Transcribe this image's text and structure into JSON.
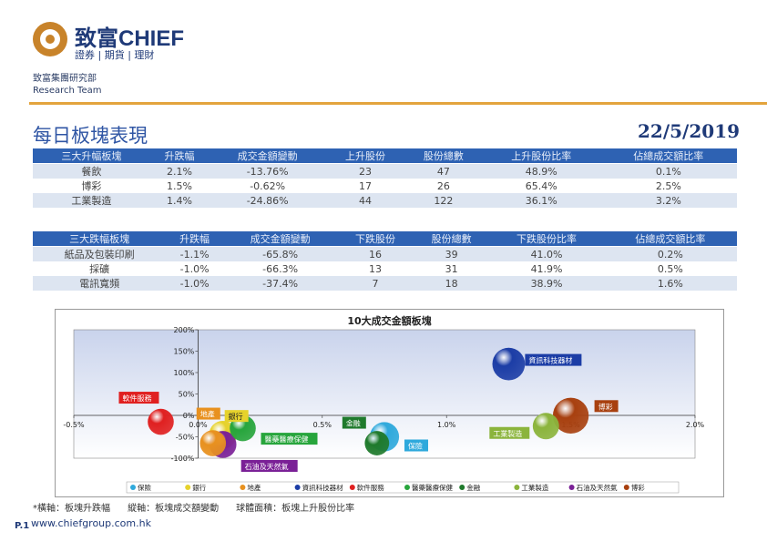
{
  "brand": {
    "name": "致富CHIEF",
    "tagline": "證券 | 期貨 | 理財",
    "dept_cn": "致富集團研究部",
    "dept_en": "Research Team"
  },
  "page": {
    "title": "每日板塊表現",
    "date": "22/5/2019",
    "footnote": "*橫軸：板塊升跌幅      縱軸：板塊成交額變動      球體面積：板塊上升股份比率",
    "page_no": "P.1",
    "url": "www.chiefgroup.com.hk"
  },
  "colors": {
    "header_bg": "#2e62b3",
    "accent": "#e3a43d",
    "brand_blue": "#1f3a78"
  },
  "top_gainers": {
    "headers": [
      "三大升幅板塊",
      "升跌幅",
      "成交金額變動",
      "上升股份",
      "股份總數",
      "上升股份比率",
      "佔總成交額比率"
    ],
    "rows": [
      [
        "餐飲",
        "2.1%",
        "-13.76%",
        "23",
        "47",
        "48.9%",
        "0.1%"
      ],
      [
        "博彩",
        "1.5%",
        "-0.62%",
        "17",
        "26",
        "65.4%",
        "2.5%"
      ],
      [
        "工業製造",
        "1.4%",
        "-24.86%",
        "44",
        "122",
        "36.1%",
        "3.2%"
      ]
    ]
  },
  "top_losers": {
    "headers": [
      "三大跌幅板塊",
      "升跌幅",
      "成交金額變動",
      "下跌股份",
      "股份總數",
      "下跌股份比率",
      "佔總成交額比率"
    ],
    "rows": [
      [
        "紙品及包裝印刷",
        "-1.1%",
        "-65.8%",
        "16",
        "39",
        "41.0%",
        "0.2%"
      ],
      [
        "採礦",
        "-1.0%",
        "-66.3%",
        "13",
        "31",
        "41.9%",
        "0.5%"
      ],
      [
        "電訊寬頻",
        "-1.0%",
        "-37.4%",
        "7",
        "18",
        "38.9%",
        "1.6%"
      ]
    ]
  },
  "chart_data": {
    "type": "scatter",
    "title": "10大成交金額板塊",
    "xlabel": "板塊升跌幅",
    "ylabel": "板塊成交額變動",
    "xlim": [
      -0.5,
      2.0
    ],
    "ylim": [
      -100,
      200
    ],
    "x_ticks": [
      "-0.5%",
      "0.0%",
      "0.5%",
      "1.0%",
      "1.5%",
      "2.0%"
    ],
    "y_ticks": [
      "200%",
      "150%",
      "100%",
      "50%",
      "0%",
      "-50%",
      "-100%"
    ],
    "legend_position": "bottom",
    "series": [
      {
        "name": "保險",
        "x": 0.75,
        "y": -50,
        "size": 0.45,
        "color": "#2fa9dc",
        "label_color": "#2fa9dc"
      },
      {
        "name": "銀行",
        "x": 0.1,
        "y": -45,
        "size": 0.4,
        "color": "#e6d22b",
        "label_color": "#e6d22b"
      },
      {
        "name": "地產",
        "x": 0.06,
        "y": -65,
        "size": 0.35,
        "color": "#e8911f",
        "label_color": "#e8911f"
      },
      {
        "name": "資訊科技器材",
        "x": 1.25,
        "y": 120,
        "size": 0.55,
        "color": "#1c3da6",
        "label_color": "#1c3da6"
      },
      {
        "name": "軟件服務",
        "x": -0.15,
        "y": -15,
        "size": 0.35,
        "color": "#e02020",
        "label_color": "#e02020"
      },
      {
        "name": "醫藥醫療保健",
        "x": 0.18,
        "y": -30,
        "size": 0.35,
        "color": "#27a53c",
        "label_color": "#27a53c"
      },
      {
        "name": "金融",
        "x": 0.72,
        "y": -65,
        "size": 0.3,
        "color": "#1f7a2c",
        "label_color": "#1f7a2c"
      },
      {
        "name": "工業製造",
        "x": 1.4,
        "y": -25,
        "size": 0.36,
        "color": "#8bb43c",
        "label_color": "#8bb43c"
      },
      {
        "name": "石油及天然氣",
        "x": 0.1,
        "y": -68,
        "size": 0.38,
        "color": "#7a2096",
        "label_color": "#7a2096"
      },
      {
        "name": "博彩",
        "x": 1.5,
        "y": -0.62,
        "size": 0.65,
        "color": "#a8400f",
        "label_color": "#a8400f"
      }
    ]
  }
}
